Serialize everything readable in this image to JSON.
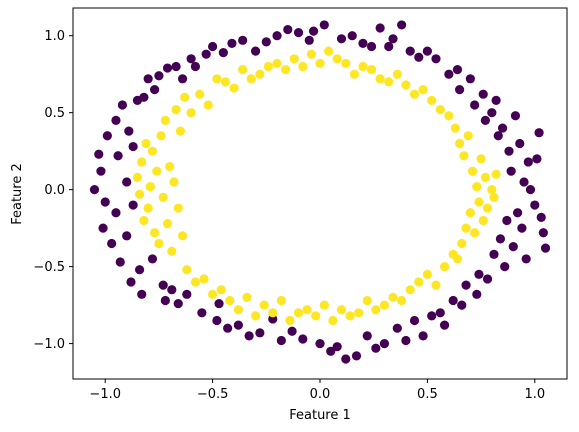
{
  "chart_data": {
    "type": "scatter",
    "title": "",
    "xlabel": "Feature 1",
    "ylabel": "Feature 2",
    "xlim": [
      -1.15,
      1.15
    ],
    "ylim": [
      -1.23,
      1.18
    ],
    "xticks": [
      -1.0,
      -0.5,
      0.0,
      0.5,
      1.0
    ],
    "xtick_labels": [
      "−1.0",
      "−0.5",
      "0.0",
      "0.5",
      "1.0"
    ],
    "yticks": [
      -1.0,
      -0.5,
      0.0,
      0.5,
      1.0
    ],
    "ytick_labels": [
      "−1.0",
      "−0.5",
      "0.0",
      "0.5",
      "1.0"
    ],
    "grid": false,
    "legend": "none",
    "series": [
      {
        "color": "#440154",
        "class": 0,
        "points": [
          [
            -1.05,
            0.0
          ],
          [
            -1.02,
            0.12
          ],
          [
            -1.0,
            -0.08
          ],
          [
            -1.01,
            -0.25
          ],
          [
            -1.03,
            0.23
          ],
          [
            -0.99,
            0.35
          ],
          [
            -0.97,
            -0.35
          ],
          [
            -0.95,
            0.45
          ],
          [
            -0.95,
            -0.15
          ],
          [
            -0.94,
            0.22
          ],
          [
            -0.93,
            -0.47
          ],
          [
            -0.92,
            0.55
          ],
          [
            -0.9,
            -0.3
          ],
          [
            -0.9,
            0.05
          ],
          [
            -0.89,
            0.38
          ],
          [
            -0.88,
            -0.6
          ],
          [
            -0.87,
            -0.1
          ],
          [
            -0.87,
            0.28
          ],
          [
            -0.85,
            0.58
          ],
          [
            -0.84,
            -0.52
          ],
          [
            -0.83,
            -0.68
          ],
          [
            -0.82,
            0.6
          ],
          [
            -0.8,
            0.72
          ],
          [
            -0.78,
            -0.45
          ],
          [
            -0.77,
            0.65
          ],
          [
            -0.75,
            0.74
          ],
          [
            -0.73,
            -0.62
          ],
          [
            -0.72,
            -0.72
          ],
          [
            -0.71,
            0.79
          ],
          [
            -0.69,
            -0.65
          ],
          [
            -0.67,
            0.8
          ],
          [
            -0.66,
            -0.74
          ],
          [
            -0.64,
            0.72
          ],
          [
            -0.62,
            -0.68
          ],
          [
            -0.6,
            0.85
          ],
          [
            -0.58,
            0.8
          ],
          [
            -0.55,
            -0.8
          ],
          [
            -0.53,
            0.88
          ],
          [
            -0.5,
            0.93
          ],
          [
            -0.48,
            -0.85
          ],
          [
            -0.47,
            -0.74
          ],
          [
            -0.45,
            0.89
          ],
          [
            -0.43,
            -0.9
          ],
          [
            -0.41,
            0.95
          ],
          [
            -0.38,
            -0.88
          ],
          [
            -0.36,
            0.97
          ],
          [
            -0.33,
            -0.95
          ],
          [
            -0.3,
            0.9
          ],
          [
            -0.28,
            -0.93
          ],
          [
            -0.25,
            0.96
          ],
          [
            -0.22,
            -0.84
          ],
          [
            -0.2,
            1.0
          ],
          [
            -0.18,
            -0.98
          ],
          [
            -0.15,
            1.04
          ],
          [
            -0.13,
            -0.92
          ],
          [
            -0.1,
            1.02
          ],
          [
            -0.08,
            -0.97
          ],
          [
            -0.05,
            0.97
          ],
          [
            -0.03,
            1.03
          ],
          [
            0.0,
            -1.0
          ],
          [
            0.02,
            1.07
          ],
          [
            0.05,
            -1.05
          ],
          [
            0.08,
            -1.02
          ],
          [
            0.1,
            0.98
          ],
          [
            0.12,
            -1.1
          ],
          [
            0.15,
            1.0
          ],
          [
            0.17,
            -1.08
          ],
          [
            0.2,
            0.95
          ],
          [
            0.22,
            -0.95
          ],
          [
            0.24,
            0.93
          ],
          [
            0.26,
            -1.03
          ],
          [
            0.28,
            1.05
          ],
          [
            0.3,
            -1.0
          ],
          [
            0.32,
            0.93
          ],
          [
            0.34,
            0.98
          ],
          [
            0.36,
            -0.9
          ],
          [
            0.38,
            1.07
          ],
          [
            0.4,
            -0.98
          ],
          [
            0.42,
            0.9
          ],
          [
            0.44,
            -0.85
          ],
          [
            0.46,
            0.86
          ],
          [
            0.48,
            -0.95
          ],
          [
            0.5,
            0.9
          ],
          [
            0.52,
            -0.82
          ],
          [
            0.54,
            0.85
          ],
          [
            0.56,
            -0.8
          ],
          [
            0.58,
            -0.88
          ],
          [
            0.6,
            0.75
          ],
          [
            0.62,
            -0.72
          ],
          [
            0.64,
            0.78
          ],
          [
            0.65,
            0.65
          ],
          [
            0.66,
            -0.75
          ],
          [
            0.68,
            -0.62
          ],
          [
            0.7,
            0.72
          ],
          [
            0.72,
            0.55
          ],
          [
            0.73,
            -0.68
          ],
          [
            0.74,
            -0.55
          ],
          [
            0.76,
            0.62
          ],
          [
            0.77,
            0.45
          ],
          [
            0.78,
            -0.58
          ],
          [
            0.8,
            0.5
          ],
          [
            0.81,
            -0.42
          ],
          [
            0.82,
            0.58
          ],
          [
            0.83,
            0.35
          ],
          [
            0.84,
            -0.32
          ],
          [
            0.85,
            0.4
          ],
          [
            0.86,
            -0.5
          ],
          [
            0.87,
            -0.2
          ],
          [
            0.88,
            0.25
          ],
          [
            0.89,
            0.12
          ],
          [
            0.9,
            -0.37
          ],
          [
            0.91,
            0.48
          ],
          [
            0.92,
            -0.15
          ],
          [
            0.93,
            0.3
          ],
          [
            0.94,
            -0.25
          ],
          [
            0.95,
            0.05
          ],
          [
            0.96,
            -0.45
          ],
          [
            0.97,
            0.18
          ],
          [
            0.98,
            0.0
          ],
          [
            1.0,
            -0.1
          ],
          [
            1.01,
            0.2
          ],
          [
            1.02,
            0.37
          ],
          [
            1.03,
            -0.18
          ],
          [
            1.04,
            -0.28
          ],
          [
            1.05,
            -0.38
          ]
        ]
      },
      {
        "color": "#fde725",
        "class": 1,
        "points": [
          [
            -0.85,
            0.08
          ],
          [
            -0.84,
            -0.03
          ],
          [
            -0.83,
            0.18
          ],
          [
            -0.82,
            -0.2
          ],
          [
            -0.81,
            0.3
          ],
          [
            -0.8,
            -0.12
          ],
          [
            -0.79,
            0.02
          ],
          [
            -0.78,
            0.25
          ],
          [
            -0.77,
            -0.28
          ],
          [
            -0.76,
            0.12
          ],
          [
            -0.75,
            -0.35
          ],
          [
            -0.74,
            0.35
          ],
          [
            -0.73,
            -0.05
          ],
          [
            -0.72,
            0.45
          ],
          [
            -0.71,
            -0.22
          ],
          [
            -0.7,
            0.15
          ],
          [
            -0.69,
            -0.4
          ],
          [
            -0.68,
            0.05
          ],
          [
            -0.67,
            0.52
          ],
          [
            -0.66,
            -0.12
          ],
          [
            -0.65,
            0.38
          ],
          [
            -0.64,
            -0.3
          ],
          [
            -0.63,
            0.6
          ],
          [
            -0.62,
            -0.52
          ],
          [
            -0.6,
            0.5
          ],
          [
            -0.58,
            -0.6
          ],
          [
            -0.56,
            0.62
          ],
          [
            -0.54,
            -0.58
          ],
          [
            -0.52,
            0.55
          ],
          [
            -0.5,
            -0.68
          ],
          [
            -0.48,
            0.72
          ],
          [
            -0.46,
            -0.65
          ],
          [
            -0.44,
            0.7
          ],
          [
            -0.42,
            -0.72
          ],
          [
            -0.4,
            0.66
          ],
          [
            -0.38,
            -0.78
          ],
          [
            -0.36,
            0.78
          ],
          [
            -0.34,
            -0.7
          ],
          [
            -0.32,
            0.72
          ],
          [
            -0.3,
            -0.82
          ],
          [
            -0.28,
            0.75
          ],
          [
            -0.26,
            -0.75
          ],
          [
            -0.24,
            0.8
          ],
          [
            -0.22,
            -0.8
          ],
          [
            -0.2,
            0.82
          ],
          [
            -0.18,
            -0.72
          ],
          [
            -0.16,
            0.78
          ],
          [
            -0.14,
            -0.85
          ],
          [
            -0.12,
            0.85
          ],
          [
            -0.1,
            -0.8
          ],
          [
            -0.08,
            0.8
          ],
          [
            -0.06,
            -0.78
          ],
          [
            -0.04,
            0.88
          ],
          [
            -0.02,
            -0.82
          ],
          [
            0.0,
            0.82
          ],
          [
            0.02,
            -0.75
          ],
          [
            0.04,
            0.9
          ],
          [
            0.06,
            -0.85
          ],
          [
            0.08,
            0.85
          ],
          [
            0.1,
            -0.78
          ],
          [
            0.12,
            0.82
          ],
          [
            0.14,
            -0.82
          ],
          [
            0.16,
            0.75
          ],
          [
            0.18,
            -0.8
          ],
          [
            0.2,
            0.8
          ],
          [
            0.22,
            -0.72
          ],
          [
            0.24,
            0.78
          ],
          [
            0.26,
            -0.78
          ],
          [
            0.28,
            0.72
          ],
          [
            0.3,
            -0.75
          ],
          [
            0.32,
            0.7
          ],
          [
            0.34,
            -0.7
          ],
          [
            0.36,
            0.75
          ],
          [
            0.38,
            -0.72
          ],
          [
            0.4,
            0.68
          ],
          [
            0.42,
            -0.65
          ],
          [
            0.44,
            0.62
          ],
          [
            0.46,
            -0.6
          ],
          [
            0.48,
            0.65
          ],
          [
            0.5,
            -0.55
          ],
          [
            0.52,
            0.58
          ],
          [
            0.54,
            -0.62
          ],
          [
            0.56,
            0.52
          ],
          [
            0.58,
            -0.5
          ],
          [
            0.6,
            0.48
          ],
          [
            0.62,
            -0.42
          ],
          [
            0.63,
            0.4
          ],
          [
            0.64,
            -0.45
          ],
          [
            0.65,
            0.3
          ],
          [
            0.66,
            -0.35
          ],
          [
            0.67,
            0.22
          ],
          [
            0.68,
            -0.25
          ],
          [
            0.69,
            0.35
          ],
          [
            0.7,
            -0.15
          ],
          [
            0.71,
            0.12
          ],
          [
            0.72,
            -0.28
          ],
          [
            0.73,
            0.02
          ],
          [
            0.74,
            -0.08
          ],
          [
            0.75,
            0.2
          ],
          [
            0.76,
            -0.2
          ],
          [
            0.77,
            0.08
          ],
          [
            0.78,
            -0.12
          ],
          [
            0.8,
            0.0
          ],
          [
            0.81,
            -0.05
          ],
          [
            0.82,
            0.1
          ]
        ]
      }
    ]
  }
}
